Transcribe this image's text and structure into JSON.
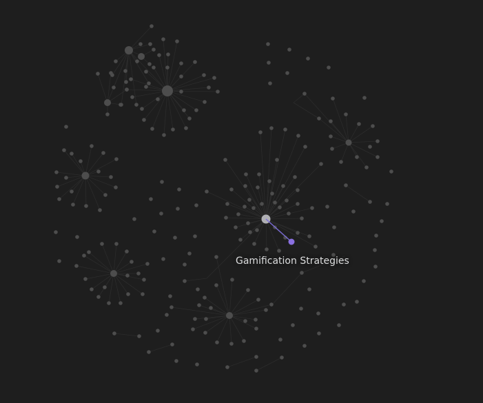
{
  "graph": {
    "hovered_note_title": "Gamification Strategies",
    "colors": {
      "background": "#1e1e1e",
      "node": "#4d4d4d",
      "node_dim": "#3a3a3a",
      "hub_center": "#b0b0b4",
      "link": "#2c2c2c",
      "link_active": "#7b6cd9",
      "node_active": "#8a70e0",
      "label": "#dcddde"
    }
  }
}
